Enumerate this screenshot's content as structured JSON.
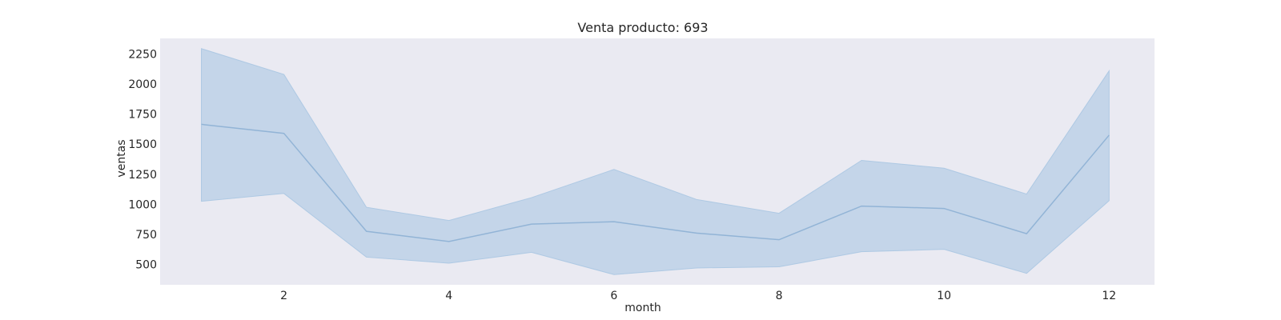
{
  "chart_data": {
    "type": "line",
    "title": "Venta producto: 693",
    "xlabel": "month",
    "ylabel": "ventas",
    "xlim": [
      0.5,
      12.55
    ],
    "ylim": [
      330,
      2380
    ],
    "x_ticks": [
      2,
      4,
      6,
      8,
      10,
      12
    ],
    "y_ticks": [
      500,
      750,
      1000,
      1250,
      1500,
      1750,
      2000,
      2250
    ],
    "grid": false,
    "background": "#eaeaf2",
    "line_color": "#92b4d6",
    "band_color": "#aac6e2",
    "series": [
      {
        "x": [
          1,
          2,
          3,
          4,
          5,
          6,
          7,
          8,
          9,
          10,
          11,
          12
        ],
        "values": [
          1665,
          1590,
          775,
          690,
          835,
          855,
          760,
          705,
          985,
          965,
          755,
          1575
        ],
        "upper": [
          2295,
          2080,
          975,
          865,
          1055,
          1290,
          1040,
          925,
          1365,
          1300,
          1085,
          2110
        ],
        "lower": [
          1025,
          1090,
          560,
          510,
          600,
          415,
          470,
          480,
          605,
          625,
          425,
          1030
        ]
      }
    ]
  }
}
